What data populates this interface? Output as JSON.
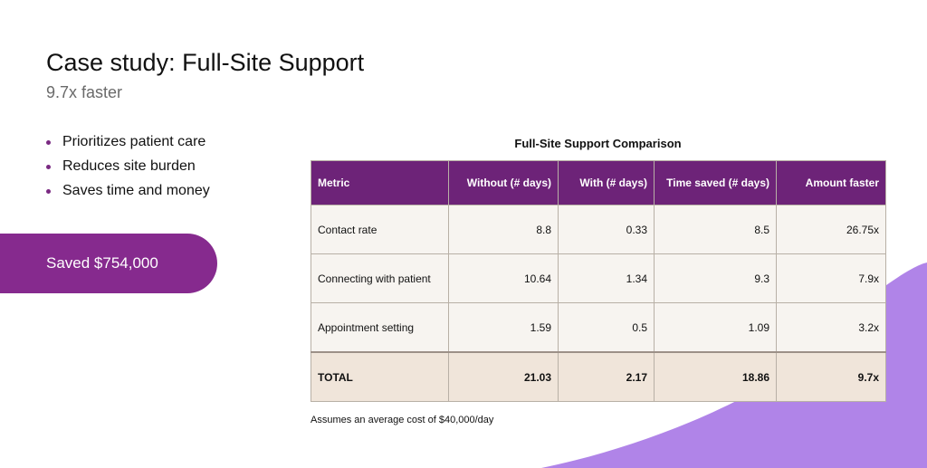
{
  "header": {
    "title": "Case study: Full-Site Support",
    "subtitle": "9.7x faster"
  },
  "bullets": [
    "Prioritizes patient care",
    "Reduces site burden",
    "Saves time and money"
  ],
  "highlight": {
    "label": "Saved $754,000",
    "color": "#862a8e"
  },
  "table": {
    "title": "Full-Site Support Comparison",
    "columns": [
      "Metric",
      "Without (# days)",
      "With (# days)",
      "Time saved (# days)",
      "Amount faster"
    ],
    "rows": [
      [
        "Contact rate",
        "8.8",
        "0.33",
        "8.5",
        "26.75x"
      ],
      [
        "Connecting with patient",
        "10.64",
        "1.34",
        "9.3",
        "7.9x"
      ],
      [
        "Appointment setting",
        "1.59",
        "0.5",
        "1.09",
        "3.2x"
      ]
    ],
    "total": [
      "TOTAL",
      "21.03",
      "2.17",
      "18.86",
      "9.7x"
    ],
    "header_color": "#6d2378"
  },
  "footnote": "Assumes an average cost of $40,000/day",
  "colors": {
    "accent_purple": "#862a8e",
    "decor_lavender": "#b084e8"
  }
}
